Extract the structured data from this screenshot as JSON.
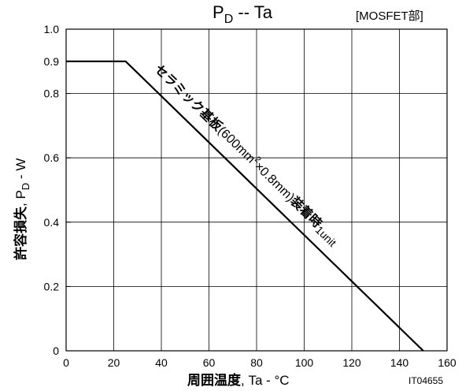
{
  "chart_data": {
    "type": "line",
    "title_parts": [
      "P",
      "D",
      " -- Ta"
    ],
    "subtitle": "[MOSFET部]",
    "xlabel": "周囲温度, Ta - °C",
    "xlabel_bold": "周囲温度",
    "xlabel_rest": ", Ta - °C",
    "ylabel_bold": "許容損失",
    "ylabel_rest_parts": [
      ", P",
      "D",
      " - W"
    ],
    "xlim": [
      0,
      160
    ],
    "ylim": [
      0,
      1.0
    ],
    "x_ticks": [
      0,
      20,
      40,
      60,
      80,
      100,
      120,
      140,
      160
    ],
    "x_tick_labels": [
      "0",
      "20",
      "40",
      "60",
      "80",
      "100",
      "120",
      "140",
      "160"
    ],
    "y_ticks": [
      0,
      0.2,
      0.4,
      0.6,
      0.8,
      0.9,
      1.0
    ],
    "y_tick_labels": [
      "0",
      "0.2",
      "0.4",
      "0.6",
      "0.8",
      "0.9",
      "1.0"
    ],
    "x_grid": [
      0,
      20,
      40,
      60,
      80,
      100,
      120,
      140,
      160
    ],
    "y_grid": [
      0,
      0.2,
      0.4,
      0.6,
      0.8,
      1.0
    ],
    "grid": true,
    "series": [
      {
        "x": [
          0,
          25,
          150
        ],
        "y": [
          0.9,
          0.9,
          0
        ]
      }
    ],
    "annotation": {
      "parts": [
        {
          "text": "セラミック基板",
          "bold": true
        },
        {
          "text": "(600mm",
          "bold": false
        },
        {
          "text": "2",
          "bold": false,
          "sup": true
        },
        {
          "text": "×0.8mm)",
          "bold": false
        },
        {
          "text": "装着時",
          "bold": true
        },
        {
          "text": "1unit",
          "bold": false,
          "small": true
        }
      ]
    },
    "doc_id": "IT04655",
    "line_color": "#000000",
    "grid_color": "#000000"
  }
}
